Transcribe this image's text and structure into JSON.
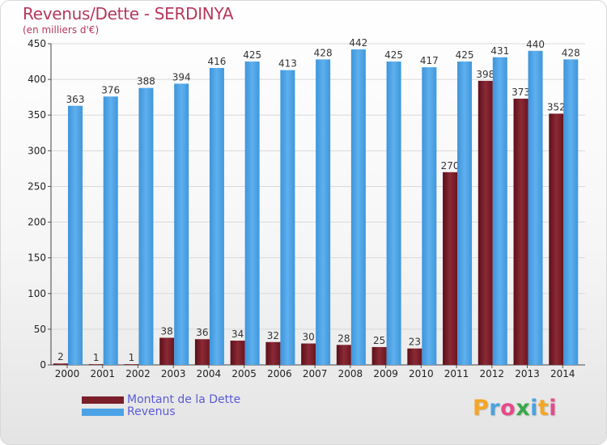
{
  "header": {
    "title": "Revenus/Dette - SERDINYA",
    "subtitle": "(en milliers d'€)"
  },
  "colors": {
    "debt": "#7a1e2a",
    "revenue": "#4ba3e6",
    "grid": "#d9d9d9",
    "axis_text": "#222222"
  },
  "chart_data": {
    "type": "bar",
    "title": "Revenus/Dette - SERDINYA",
    "ylabel": "(en milliers d'€)",
    "categories": [
      "2000",
      "2001",
      "2002",
      "2003",
      "2004",
      "2005",
      "2006",
      "2007",
      "2008",
      "2009",
      "2010",
      "2011",
      "2012",
      "2013",
      "2014"
    ],
    "series": [
      {
        "name": "Montant de la Dette",
        "values": [
          2,
          1,
          1,
          38,
          36,
          34,
          32,
          30,
          28,
          25,
          23,
          270,
          398,
          373,
          352
        ]
      },
      {
        "name": "Revenus",
        "values": [
          363,
          376,
          388,
          394,
          416,
          425,
          413,
          428,
          442,
          425,
          417,
          425,
          431,
          440,
          428
        ]
      }
    ],
    "ylim": [
      0,
      450
    ],
    "yticks": [
      0,
      50,
      100,
      150,
      200,
      250,
      300,
      350,
      400,
      450
    ],
    "grid": true,
    "legend_position": "bottom-left"
  },
  "logo": {
    "letters": [
      "P",
      "r",
      "o",
      "x",
      "i",
      "t",
      "i"
    ],
    "colors": [
      "#f5a623",
      "#4aa3df",
      "#e64a8a",
      "#3aa84a",
      "#4aa3df",
      "#f5a623",
      "#e64a8a"
    ]
  }
}
